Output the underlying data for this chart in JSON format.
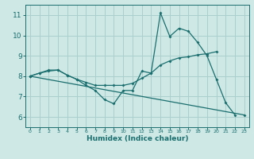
{
  "title": "",
  "xlabel": "Humidex (Indice chaleur)",
  "xlim": [
    -0.5,
    23.5
  ],
  "ylim": [
    5.5,
    11.5
  ],
  "xticks": [
    0,
    1,
    2,
    3,
    4,
    5,
    6,
    7,
    8,
    9,
    10,
    11,
    12,
    13,
    14,
    15,
    16,
    17,
    18,
    19,
    20,
    21,
    22,
    23
  ],
  "yticks": [
    6,
    7,
    8,
    9,
    10,
    11
  ],
  "bg_color": "#cde8e5",
  "grid_color": "#aacfcc",
  "line_color": "#1a6e6e",
  "line1_y": [
    8.0,
    8.15,
    8.25,
    8.3,
    8.05,
    7.85,
    7.55,
    7.3,
    6.85,
    6.65,
    7.3,
    7.3,
    8.25,
    8.15,
    11.1,
    9.95,
    10.35,
    10.2,
    9.65,
    9.0,
    7.85,
    6.7,
    6.1,
    null
  ],
  "line2_y": [
    8.0,
    8.15,
    8.3,
    8.3,
    8.05,
    7.85,
    7.7,
    7.55,
    7.55,
    7.55,
    7.55,
    7.65,
    7.9,
    8.15,
    8.55,
    8.75,
    8.9,
    8.95,
    9.05,
    9.1,
    9.2,
    null,
    null,
    null
  ],
  "line3_x": [
    0,
    23
  ],
  "line3_y": [
    8.0,
    6.1
  ]
}
